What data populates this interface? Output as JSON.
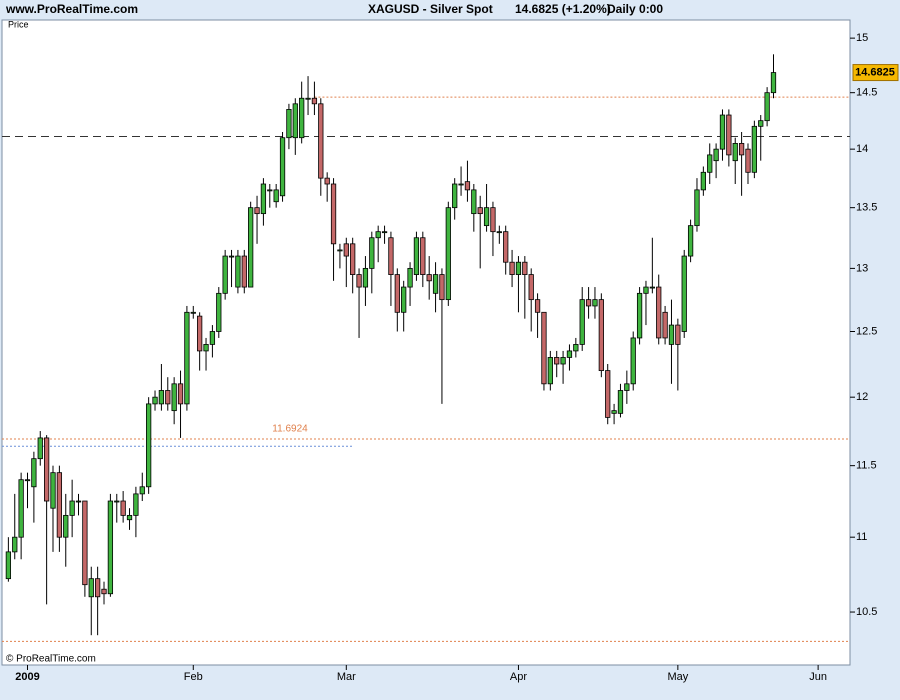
{
  "chart_data": {
    "type": "candlestick",
    "site": "www.ProRealTime.com",
    "title": "XAGUSD - Silver Spot",
    "quote": "14.6825 (+1.20%)",
    "period": "Daily  0:00",
    "panel_label": "Price",
    "copyright": "© ProRealTime.com",
    "log_scale": true,
    "up_color": "#3fb43f",
    "down_color": "#c46868",
    "x": [
      0,
      1,
      2,
      3,
      4,
      5,
      6,
      7,
      8,
      9,
      10,
      11,
      12,
      13,
      14,
      15,
      16,
      17,
      18,
      19,
      20,
      21,
      22,
      23,
      24,
      25,
      26,
      27,
      28,
      29,
      30,
      31,
      32,
      33,
      34,
      35,
      36,
      37,
      38,
      39,
      40,
      41,
      42,
      43,
      44,
      45,
      46,
      47,
      48,
      49,
      50,
      51,
      52,
      53,
      54,
      55,
      56,
      57,
      58,
      59,
      60,
      61,
      62,
      63,
      64,
      65,
      66,
      67,
      68,
      69,
      70,
      71,
      72,
      73,
      74,
      75,
      76,
      77,
      78,
      79,
      80,
      81,
      82,
      83,
      84,
      85,
      86,
      87,
      88,
      89,
      90,
      91,
      92,
      93,
      94,
      95,
      96,
      97,
      98,
      99,
      100,
      101,
      102,
      103,
      104,
      105,
      106,
      107,
      108,
      109,
      110,
      111,
      112,
      113,
      114,
      115,
      116,
      117,
      118,
      119,
      120
    ],
    "open": [
      10.72,
      10.9,
      11.0,
      11.4,
      11.35,
      11.55,
      11.7,
      11.2,
      11.45,
      11.0,
      11.15,
      11.25,
      11.25,
      10.6,
      10.72,
      10.65,
      10.62,
      11.25,
      11.25,
      11.12,
      11.15,
      11.3,
      11.35,
      11.95,
      11.95,
      12.05,
      11.9,
      12.1,
      11.95,
      12.65,
      12.62,
      12.35,
      12.4,
      12.5,
      12.8,
      13.1,
      12.85,
      13.1,
      12.85,
      13.5,
      13.45,
      13.65,
      13.55,
      13.6,
      14.1,
      14.1,
      14.1,
      14.45,
      14.45,
      14.4,
      13.75,
      13.7,
      13.15,
      13.2,
      13.2,
      12.95,
      12.85,
      13.0,
      13.25,
      13.3,
      13.25,
      12.95,
      12.65,
      12.85,
      12.95,
      13.25,
      12.95,
      12.8,
      12.95,
      12.75,
      13.5,
      13.7,
      13.72,
      13.45,
      13.5,
      13.35,
      13.5,
      13.3,
      13.3,
      13.05,
      12.95,
      13.05,
      12.95,
      12.75,
      12.65,
      12.1,
      12.3,
      12.25,
      12.3,
      12.35,
      12.4,
      12.75,
      12.7,
      12.75,
      12.2,
      11.88,
      11.88,
      12.05,
      12.1,
      12.45,
      12.8,
      12.85,
      12.85,
      12.65,
      12.4,
      12.55,
      12.5,
      13.1,
      13.35,
      13.65,
      13.8,
      13.9,
      14.0,
      14.3,
      13.9,
      14.05,
      14.0,
      13.8,
      14.2,
      14.25,
      14.5
    ],
    "high": [
      11.0,
      11.3,
      11.45,
      11.45,
      11.6,
      11.75,
      11.72,
      11.5,
      11.5,
      11.3,
      11.4,
      11.3,
      11.25,
      10.8,
      10.8,
      10.7,
      11.3,
      11.3,
      11.32,
      11.2,
      11.35,
      11.45,
      12.0,
      12.05,
      12.25,
      12.15,
      12.15,
      12.2,
      12.7,
      12.7,
      12.65,
      12.45,
      12.55,
      12.85,
      13.15,
      13.15,
      13.15,
      13.15,
      13.55,
      13.6,
      13.75,
      13.7,
      13.7,
      14.15,
      14.4,
      14.45,
      14.6,
      14.65,
      14.6,
      14.45,
      13.8,
      13.75,
      13.2,
      13.25,
      13.25,
      13.0,
      13.1,
      13.3,
      13.35,
      13.35,
      13.3,
      13.0,
      12.9,
      13.05,
      13.3,
      13.3,
      13.1,
      13.05,
      13.0,
      13.55,
      13.75,
      13.85,
      13.9,
      13.7,
      13.6,
      13.7,
      13.55,
      13.35,
      13.35,
      13.15,
      13.1,
      13.1,
      13.0,
      12.8,
      12.65,
      12.35,
      12.35,
      12.35,
      12.4,
      12.45,
      12.85,
      12.85,
      12.85,
      12.8,
      12.25,
      11.95,
      12.1,
      12.2,
      12.5,
      12.85,
      12.9,
      13.25,
      12.95,
      12.7,
      12.75,
      12.6,
      13.15,
      13.4,
      13.75,
      13.85,
      14.05,
      14.05,
      14.35,
      14.35,
      14.1,
      14.15,
      14.05,
      14.25,
      14.3,
      14.55,
      14.85
    ],
    "low": [
      10.7,
      10.85,
      10.85,
      11.2,
      11.1,
      11.5,
      10.55,
      10.9,
      10.9,
      10.8,
      11.0,
      11.15,
      10.6,
      10.35,
      10.35,
      10.55,
      10.6,
      11.1,
      11.1,
      11.05,
      11.0,
      11.25,
      11.3,
      11.9,
      11.9,
      11.9,
      11.8,
      11.7,
      11.9,
      12.6,
      12.2,
      12.2,
      12.3,
      12.45,
      12.75,
      12.85,
      12.8,
      12.8,
      12.85,
      13.2,
      13.35,
      13.5,
      13.5,
      13.55,
      14.0,
      13.95,
      14.05,
      14.3,
      14.3,
      13.6,
      13.55,
      12.9,
      13.0,
      12.85,
      12.8,
      12.45,
      12.7,
      12.8,
      13.05,
      13.2,
      12.7,
      12.5,
      12.5,
      12.7,
      12.9,
      12.85,
      12.75,
      12.65,
      11.95,
      12.7,
      13.4,
      13.6,
      13.55,
      13.3,
      13.0,
      13.3,
      13.1,
      13.2,
      12.95,
      12.85,
      12.65,
      12.6,
      12.5,
      12.45,
      12.05,
      12.05,
      12.15,
      12.1,
      12.2,
      12.3,
      12.35,
      12.6,
      12.6,
      12.15,
      11.8,
      11.8,
      11.85,
      11.95,
      12.05,
      12.4,
      12.55,
      12.8,
      12.4,
      12.4,
      12.1,
      12.05,
      12.45,
      13.05,
      13.3,
      13.6,
      13.7,
      13.75,
      13.9,
      13.85,
      13.7,
      13.6,
      13.7,
      13.75,
      13.9,
      14.2,
      14.45
    ],
    "close": [
      10.9,
      11.0,
      11.4,
      11.4,
      11.55,
      11.7,
      11.25,
      11.45,
      11.0,
      11.15,
      11.25,
      11.25,
      10.68,
      10.72,
      10.6,
      10.62,
      11.25,
      11.25,
      11.15,
      11.15,
      11.3,
      11.35,
      11.95,
      12.0,
      12.05,
      11.95,
      12.1,
      11.95,
      12.65,
      12.65,
      12.35,
      12.4,
      12.5,
      12.8,
      13.1,
      13.1,
      13.1,
      12.85,
      13.5,
      13.45,
      13.7,
      13.65,
      13.65,
      14.1,
      14.35,
      14.4,
      14.45,
      14.45,
      14.4,
      13.75,
      13.7,
      13.2,
      13.15,
      13.1,
      12.95,
      12.85,
      13.0,
      13.25,
      13.3,
      13.3,
      12.95,
      12.65,
      12.85,
      13.0,
      13.25,
      12.95,
      12.9,
      12.95,
      12.75,
      13.5,
      13.7,
      13.7,
      13.65,
      13.65,
      13.45,
      13.5,
      13.3,
      13.3,
      13.05,
      12.95,
      13.05,
      12.95,
      12.75,
      12.65,
      12.1,
      12.3,
      12.25,
      12.3,
      12.35,
      12.4,
      12.75,
      12.7,
      12.75,
      12.2,
      11.85,
      11.9,
      12.05,
      12.1,
      12.45,
      12.8,
      12.85,
      12.85,
      12.45,
      12.45,
      12.55,
      12.4,
      13.1,
      13.35,
      13.65,
      13.8,
      13.95,
      14.0,
      14.3,
      13.95,
      14.05,
      13.95,
      13.8,
      14.2,
      14.25,
      14.5,
      14.6825
    ],
    "levels": [
      {
        "value": 14.46,
        "color": "#e0804c",
        "style": "dotted",
        "start": 48,
        "end": 132
      },
      {
        "value": 14.11,
        "color": "#333333",
        "style": "dashed",
        "start": -1,
        "end": 132
      },
      {
        "value": 11.6924,
        "color": "#e0804c",
        "style": "dotted",
        "start": -1,
        "end": 132,
        "labeled": true
      },
      {
        "value": 11.64,
        "color": "#6a8fd8",
        "style": "dotted",
        "start": -1,
        "end": 54
      },
      {
        "value": 10.31,
        "color": "#e0804c",
        "style": "dotted",
        "start": -1,
        "end": 132
      }
    ],
    "xlim": [
      -1,
      132
    ],
    "ylim": [
      10.16,
      15.17
    ],
    "yticks": [
      {
        "value": 10.5,
        "label": "10.5"
      },
      11,
      {
        "value": 11.5,
        "label": "11.5"
      },
      12,
      {
        "value": 12.5,
        "label": "12.5"
      },
      13,
      {
        "value": 13.5,
        "label": "13.5"
      },
      14,
      {
        "value": 14.5,
        "label": "14.5"
      },
      15
    ],
    "xticks": [
      {
        "value": 3,
        "label": "2009"
      },
      {
        "value": 29,
        "label": "Feb"
      },
      {
        "value": 53,
        "label": "Mar"
      },
      {
        "value": 80,
        "label": "Apr"
      },
      {
        "value": 105,
        "label": "May"
      },
      {
        "value": 127,
        "label": "Jun"
      }
    ]
  }
}
